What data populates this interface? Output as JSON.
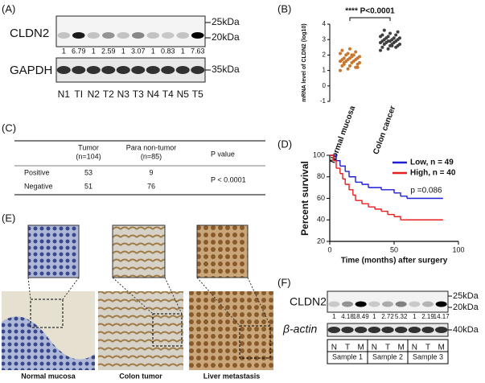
{
  "panels": {
    "a": {
      "label": "(A)",
      "protein": "CLDN2",
      "control": "GAPDH",
      "markers": [
        "25kDa",
        "20kDa"
      ],
      "control_marker": "35kDa",
      "ratios": [
        1,
        6.79,
        1,
        2.59,
        1,
        3.07,
        1,
        0.83,
        1,
        7.63
      ],
      "lanes": [
        "N1",
        "TI",
        "N2",
        "T2",
        "N3",
        "T3",
        "N4",
        "T4",
        "N5",
        "T5"
      ]
    },
    "c": {
      "label": "(C)",
      "header": [
        [
          "Tumor",
          "(n=104)"
        ],
        [
          "Para non-tumor",
          "(n=85)"
        ],
        [
          "P value"
        ]
      ],
      "rows": [
        [
          "Positive",
          53,
          9
        ],
        [
          "Negative",
          51,
          76
        ]
      ],
      "p_value": "P < 0.0001"
    },
    "e": {
      "label": "(E)",
      "captions": [
        "Normal mucosa",
        "Colon tumor",
        "Liver metastasis"
      ]
    },
    "f": {
      "label": "(F)",
      "protein": "CLDN2",
      "control": "β-actin",
      "markers": [
        "25kDa",
        "20kDa"
      ],
      "control_marker": "40kDa",
      "ratios": [
        1,
        4.18,
        18.49,
        1,
        2.72,
        5.32,
        1,
        2.19,
        14.17
      ],
      "lanes": [
        "N",
        "T",
        "M",
        "N",
        "T",
        "M",
        "N",
        "T",
        "M"
      ],
      "samples": [
        "Sample 1",
        "Sample 2",
        "Sample 3"
      ]
    }
  },
  "chart_data": [
    {
      "type": "scatter",
      "panel": "(B)",
      "y_label": "mRNA level of CLDN2 (log10)",
      "annotation": "**** P<0.0001",
      "categories": [
        "Normal mucosa",
        "Colon cancer"
      ],
      "ylim": [
        -1,
        4
      ],
      "yticks": [
        -1,
        0,
        1,
        2,
        3,
        4
      ],
      "series": [
        {
          "color": "#c8772e",
          "values": [
            1.0,
            1.1,
            1.2,
            1.3,
            1.3,
            1.4,
            1.4,
            1.5,
            1.5,
            1.6,
            1.6,
            1.6,
            1.7,
            1.7,
            1.7,
            1.8,
            1.8,
            1.8,
            1.9,
            1.9,
            2.0,
            2.0,
            2.1,
            2.1,
            2.2,
            2.3,
            2.4,
            1.2,
            1.5,
            2.0
          ]
        },
        {
          "color": "#404040",
          "values": [
            2.3,
            2.4,
            2.5,
            2.5,
            2.6,
            2.6,
            2.7,
            2.7,
            2.7,
            2.8,
            2.8,
            2.8,
            2.9,
            2.9,
            2.9,
            2.9,
            3.0,
            3.0,
            3.0,
            3.1,
            3.1,
            3.1,
            3.2,
            3.2,
            3.3,
            3.3,
            3.4,
            3.5,
            3.6,
            2.6
          ]
        }
      ]
    },
    {
      "type": "line",
      "panel": "(D)",
      "y_label": "Percent survival",
      "x_label": "Time (months) after surgery",
      "annotation": "p =0.086",
      "legend": "upper right",
      "xlim": [
        0,
        100
      ],
      "xticks": [
        0,
        50,
        100
      ],
      "ylim": [
        20,
        100
      ],
      "yticks": [
        20,
        40,
        60,
        80,
        100
      ],
      "series": [
        {
          "name": "Low, n = 49",
          "color": "#1f1fd6",
          "x": [
            0,
            5,
            8,
            12,
            15,
            20,
            25,
            30,
            40,
            50,
            55,
            60,
            88
          ],
          "values": [
            100,
            95,
            90,
            85,
            80,
            75,
            73,
            70,
            68,
            65,
            62,
            60,
            60
          ]
        },
        {
          "name": "High, n = 40",
          "color": "#e81e1e",
          "x": [
            0,
            3,
            5,
            8,
            10,
            12,
            15,
            18,
            20,
            25,
            30,
            35,
            40,
            45,
            50,
            55,
            60,
            88
          ],
          "values": [
            100,
            95,
            88,
            83,
            78,
            73,
            68,
            63,
            58,
            55,
            52,
            50,
            48,
            45,
            43,
            40,
            40,
            40
          ]
        }
      ]
    }
  ]
}
